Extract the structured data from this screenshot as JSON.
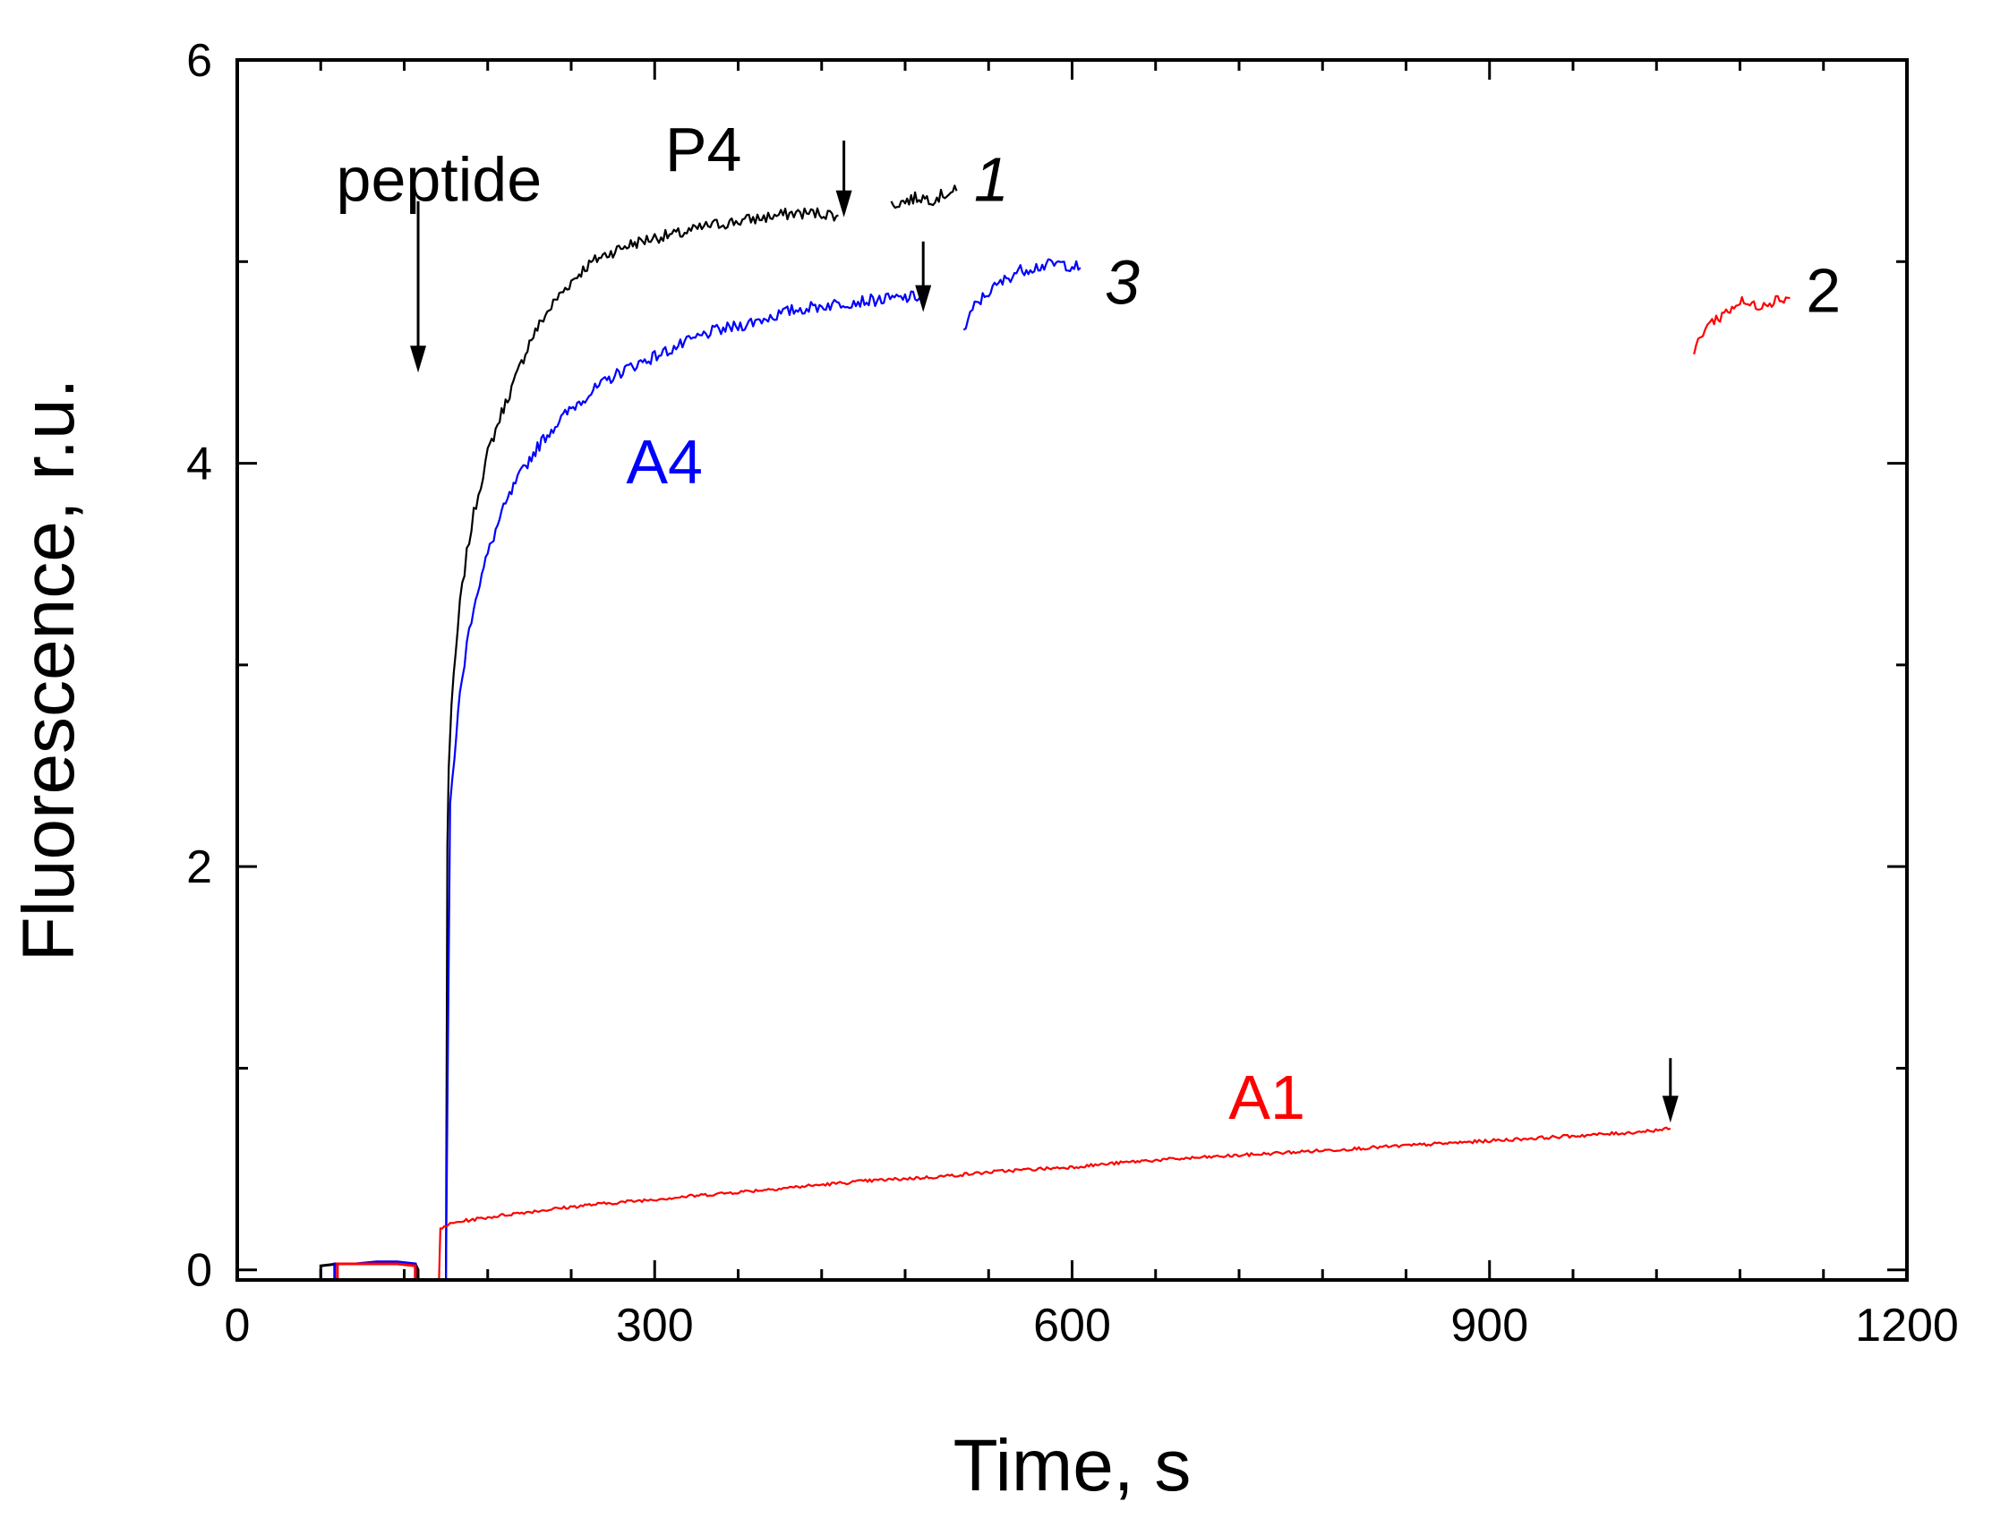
{
  "chart_data": {
    "type": "line",
    "title": "",
    "xlabel": "Time, s",
    "ylabel": "Fluorescence, r.u.",
    "xlim": [
      0,
      1200
    ],
    "ylim": [
      -0.05,
      6
    ],
    "xticks": [
      0,
      300,
      600,
      900,
      1200
    ],
    "yticks": [
      0,
      2,
      4,
      6
    ],
    "x_minor_step": 60,
    "y_minor_step": 1,
    "grid": false,
    "colors": {
      "P4": "#000000",
      "A4": "#0000ff",
      "A1": "#ff0000",
      "arrow": "#000000"
    },
    "series": [
      {
        "name": "P4",
        "color": "#000000",
        "baseline": {
          "x": [
            60,
            72,
            85,
            100,
            115,
            128,
            130
          ],
          "y": [
            0.02,
            0.03,
            0.03,
            0.03,
            0.03,
            0.03,
            0.0
          ]
        },
        "segments": [
          {
            "x": [
              150,
              151,
              152,
              154,
              157,
              160,
              165,
              170,
              175,
              180,
              190,
              200,
              210,
              220,
              230,
              240,
              250,
              260,
              270,
              280,
              290,
              300,
              320,
              340,
              360,
              380,
              400,
              420,
              432
            ],
            "y": [
              -0.05,
              2.1,
              2.5,
              2.8,
              3.05,
              3.3,
              3.55,
              3.75,
              3.9,
              4.05,
              4.25,
              4.42,
              4.6,
              4.72,
              4.82,
              4.9,
              4.97,
              5.02,
              5.05,
              5.08,
              5.1,
              5.12,
              5.14,
              5.18,
              5.2,
              5.22,
              5.24,
              5.24,
              5.23
            ]
          },
          {
            "x": [
              470,
              480,
              490,
              500,
              510,
              517
            ],
            "y": [
              5.28,
              5.3,
              5.32,
              5.31,
              5.34,
              5.35
            ]
          }
        ]
      },
      {
        "name": "A4",
        "color": "#0000ff",
        "baseline": {
          "x": [
            70,
            85,
            100,
            115,
            128
          ],
          "y": [
            0.03,
            0.03,
            0.04,
            0.04,
            0.03
          ]
        },
        "segments": [
          {
            "x": [
              150,
              151,
              153,
              156,
              160,
              165,
              170,
              180,
              190,
              200,
              210,
              220,
              230,
              240,
              250,
              260,
              270,
              280,
              290,
              300,
              320,
              340,
              360,
              380,
              400,
              420,
              440,
              460,
              480,
              493
            ],
            "y": [
              -0.05,
              0.8,
              2.3,
              2.55,
              2.85,
              3.1,
              3.3,
              3.55,
              3.75,
              3.9,
              4.02,
              4.12,
              4.2,
              4.27,
              4.33,
              4.38,
              4.43,
              4.47,
              4.5,
              4.53,
              4.59,
              4.65,
              4.68,
              4.72,
              4.76,
              4.78,
              4.8,
              4.81,
              4.82,
              4.83
            ]
          },
          {
            "x": [
              522,
              530,
              540,
              550,
              560,
              570,
              580,
              590,
              600,
              606
            ],
            "y": [
              4.65,
              4.78,
              4.85,
              4.9,
              4.95,
              4.97,
              4.98,
              4.99,
              4.98,
              4.97
            ]
          }
        ]
      },
      {
        "name": "A1",
        "color": "#ff0000",
        "baseline": {
          "x": [
            72,
            85,
            100,
            115,
            128
          ],
          "y": [
            0.03,
            0.03,
            0.03,
            0.03,
            0.02
          ]
        },
        "segments": [
          {
            "x": [
              145,
              146,
              150,
              160,
              180,
              200,
              250,
              300,
              350,
              400,
              450,
              500,
              550,
              600,
              650,
              700,
              750,
              800,
              850,
              900,
              950,
              1000,
              1030
            ],
            "y": [
              -0.05,
              0.2,
              0.22,
              0.24,
              0.26,
              0.28,
              0.32,
              0.35,
              0.38,
              0.41,
              0.44,
              0.46,
              0.49,
              0.51,
              0.54,
              0.56,
              0.58,
              0.6,
              0.62,
              0.64,
              0.66,
              0.68,
              0.7
            ]
          },
          {
            "x": [
              1047,
              1050,
              1055,
              1060,
              1070,
              1080,
              1090,
              1100,
              1110,
              1116
            ],
            "y": [
              4.55,
              4.6,
              4.68,
              4.7,
              4.75,
              4.8,
              4.78,
              4.8,
              4.82,
              4.82
            ]
          }
        ]
      }
    ],
    "labels": [
      {
        "text": "peptide",
        "x": 145,
        "y": 5.3,
        "color": "#000000",
        "italic": false,
        "anchor": "middle"
      },
      {
        "text": "P4",
        "x": 335,
        "y": 5.45,
        "color": "#000000",
        "italic": false,
        "anchor": "middle"
      },
      {
        "text": "1",
        "x": 542,
        "y": 5.3,
        "color": "#000000",
        "italic": true,
        "anchor": "middle"
      },
      {
        "text": "3",
        "x": 636,
        "y": 4.79,
        "color": "#000000",
        "italic": true,
        "anchor": "middle"
      },
      {
        "text": "A4",
        "x": 307,
        "y": 3.9,
        "color": "#0000ff",
        "italic": false,
        "anchor": "middle"
      },
      {
        "text": "2",
        "x": 1140,
        "y": 4.75,
        "color": "#000000",
        "italic": false,
        "anchor": "middle"
      },
      {
        "text": "A1",
        "x": 740,
        "y": 0.75,
        "color": "#ff0000",
        "italic": false,
        "anchor": "middle"
      }
    ],
    "arrows": [
      {
        "name": "peptide-arrow",
        "x": 130,
        "y_start": 5.3,
        "y_end": 4.45
      },
      {
        "name": "arrow-1",
        "x": 436,
        "y_start": 5.6,
        "y_end": 5.22
      },
      {
        "name": "arrow-3",
        "x": 493,
        "y_start": 5.1,
        "y_end": 4.75
      },
      {
        "name": "arrow-2",
        "x": 1030,
        "y_start": 1.05,
        "y_end": 0.73
      }
    ]
  }
}
